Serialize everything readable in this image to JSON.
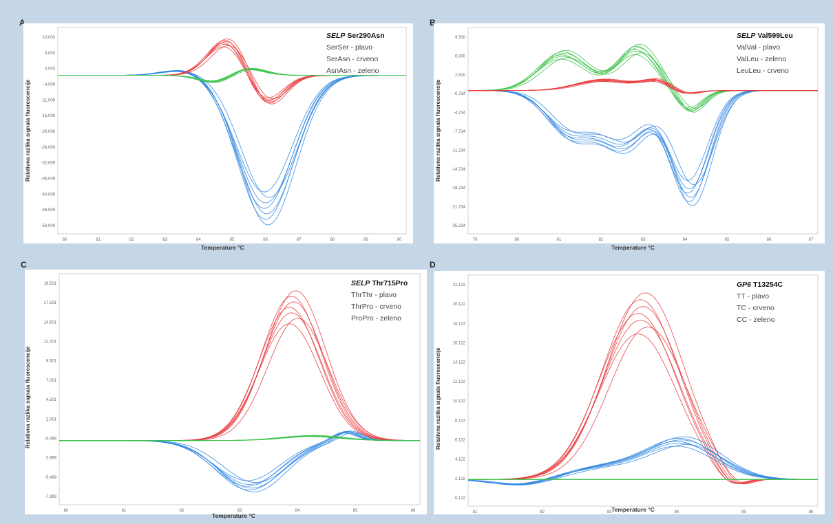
{
  "chart_data": [
    {
      "panel": "A",
      "type": "line",
      "title_gene": "SELP",
      "title_variant": "Ser290Asn",
      "legend": [
        "SerSer - plavo",
        "SerAsn - crveno",
        "AsnAsn - zeleno"
      ],
      "xlabel": "Temperature °C",
      "ylabel": "Relativna razlika signala fluorescencije",
      "xlim": [
        80,
        90
      ],
      "ylim": [
        -53,
        16
      ],
      "x_ticks": [
        "80",
        "81",
        "82",
        "83",
        "84",
        "85",
        "86",
        "87",
        "88",
        "89",
        "90"
      ],
      "y_ticks": [
        "10,003",
        "5,003",
        "0,003",
        "-4,009",
        "-11,009",
        "-16,009",
        "-20,009",
        "-26,009",
        "-32,009",
        "-36,009",
        "-40,009",
        "-46,009",
        "-50,009"
      ],
      "series": [
        {
          "color": "#2f86e0",
          "peaks": [
            {
              "x": 86.0,
              "y": -50,
              "w": 0.8
            },
            {
              "x": 83.6,
              "y": 2,
              "w": 0.6
            }
          ]
        },
        {
          "color": "#e8393b",
          "peaks": [
            {
              "x": 84.9,
              "y": 13,
              "w": 0.55
            },
            {
              "x": 86.0,
              "y": -11,
              "w": 0.5
            }
          ]
        },
        {
          "color": "#3cc24a",
          "peaks": [
            {
              "x": 85.4,
              "y": 3,
              "w": 0.5
            },
            {
              "x": 84.6,
              "y": -3,
              "w": 0.5
            }
          ]
        }
      ]
    },
    {
      "panel": "B",
      "type": "line",
      "title_gene": "SELP",
      "title_variant": "Val599Leu",
      "legend": [
        "ValVal - plavo",
        "ValLeu - zeleno",
        "LeuLeu - crveno"
      ],
      "xlabel": "Temperature °C",
      "ylabel": "Relativna razlika signala fluorescencije",
      "xlim": [
        79,
        87
      ],
      "ylim": [
        -25,
        11
      ],
      "x_ticks": [
        "79",
        "80",
        "81",
        "82",
        "83",
        "84",
        "85",
        "86",
        "87"
      ],
      "y_ticks": [
        "9,500",
        "6,000",
        "2,500",
        "-0,734",
        "-4,234",
        "-7,734",
        "-11,234",
        "-14,734",
        "-18,234",
        "-21,734",
        "-25,234"
      ],
      "series": [
        {
          "color": "#2f86e0",
          "peaks": [
            {
              "x": 81.4,
              "y": -8.5,
              "w": 0.55
            },
            {
              "x": 82.6,
              "y": -10,
              "w": 0.5
            },
            {
              "x": 84.1,
              "y": -20,
              "w": 0.45
            }
          ]
        },
        {
          "color": "#3cc24a",
          "peaks": [
            {
              "x": 81.2,
              "y": 7,
              "w": 0.55
            },
            {
              "x": 82.9,
              "y": 8,
              "w": 0.45
            },
            {
              "x": 84.1,
              "y": -4,
              "w": 0.3
            }
          ]
        },
        {
          "color": "#e8393b",
          "peaks": [
            {
              "x": 82.1,
              "y": 2,
              "w": 0.6
            },
            {
              "x": 83.4,
              "y": 2,
              "w": 0.4
            },
            {
              "x": 83.9,
              "y": -1.2,
              "w": 0.3
            }
          ]
        }
      ]
    },
    {
      "panel": "C",
      "type": "line",
      "title_gene": "SELP",
      "title_variant": "Thr715Pro",
      "legend": [
        "ThrThr - plavo",
        "ThrPro - crveno",
        "ProPro - zeleno"
      ],
      "xlabel": "Temperature °C",
      "ylabel": "Relativna razlika signala fluorescencije",
      "xlim": [
        80,
        86
      ],
      "ylim": [
        -7.5,
        19.5
      ],
      "x_ticks": [
        "80",
        "81",
        "82",
        "83",
        "84",
        "85",
        "86"
      ],
      "y_ticks": [
        "19,501",
        "17,501",
        "14,501",
        "12,001",
        "9,501",
        "7,001",
        "4,501",
        "2,001",
        "-0,499",
        "-2,999",
        "-5,499",
        "-7,999"
      ],
      "series": [
        {
          "color": "#e8393b",
          "peaks": [
            {
              "x": 83.9,
              "y": 17.5,
              "w": 0.5
            }
          ]
        },
        {
          "color": "#2f86e0",
          "peaks": [
            {
              "x": 83.2,
              "y": -6,
              "w": 0.55
            },
            {
              "x": 84.8,
              "y": 1.2,
              "w": 0.2
            }
          ]
        },
        {
          "color": "#3cc24a",
          "peaks": [
            {
              "x": 84.2,
              "y": 0.6,
              "w": 0.5
            }
          ]
        }
      ]
    },
    {
      "panel": "D",
      "type": "line",
      "title_gene": "GP6",
      "title_variant": "T13254C",
      "legend": [
        "TT - plavo",
        "TC - crveno",
        "CC - zeleno"
      ],
      "xlabel": "Temperature °C",
      "ylabel": "Relativna razlika signala fluorescencije",
      "xlim": [
        81,
        86
      ],
      "ylim": [
        -3,
        23
      ],
      "x_ticks": [
        "81",
        "82",
        "83",
        "84",
        "85",
        "86"
      ],
      "y_ticks": [
        "22,122",
        "20,122",
        "18,122",
        "16,122",
        "14,122",
        "12,122",
        "10,122",
        "8,122",
        "6,122",
        "4,122",
        "2,122",
        "0,122"
      ],
      "series": [
        {
          "color": "#e8393b",
          "peaks": [
            {
              "x": 83.5,
              "y": 21,
              "w": 0.55
            },
            {
              "x": 84.8,
              "y": -1.5,
              "w": 0.2
            }
          ]
        },
        {
          "color": "#2f86e0",
          "peaks": [
            {
              "x": 84.1,
              "y": 4.5,
              "w": 0.5
            },
            {
              "x": 83.0,
              "y": 1.5,
              "w": 0.6
            },
            {
              "x": 81.8,
              "y": -0.8,
              "w": 0.4
            }
          ]
        },
        {
          "color": "#3cc24a",
          "peaks": []
        }
      ]
    }
  ]
}
